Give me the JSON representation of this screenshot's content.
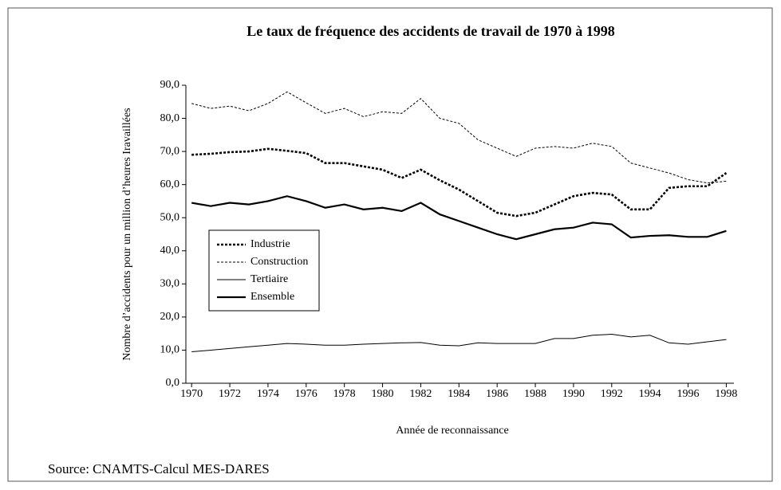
{
  "chart_data": {
    "type": "line",
    "title": "Le taux de fréquence des accidents de travail de 1970 à 1998",
    "xlabel": "Année de reconnaissance",
    "ylabel": "Nombre d’accidents pour un million d’heures Iravaillées",
    "source": "Source: CNAMTS-Calcul MES-DARES",
    "x": [
      1970,
      1971,
      1972,
      1973,
      1974,
      1975,
      1976,
      1977,
      1978,
      1979,
      1980,
      1981,
      1982,
      1983,
      1984,
      1985,
      1986,
      1987,
      1988,
      1989,
      1990,
      1991,
      1992,
      1993,
      1994,
      1995,
      1996,
      1997,
      1998
    ],
    "xlim": [
      1969.7,
      1998.4
    ],
    "xticks": [
      1970,
      1972,
      1974,
      1976,
      1978,
      1980,
      1982,
      1984,
      1986,
      1988,
      1990,
      1992,
      1994,
      1996,
      1998
    ],
    "ylim": [
      0,
      90
    ],
    "yticks": [
      {
        "value": 0,
        "label": "0,0"
      },
      {
        "value": 10,
        "label": "10,0"
      },
      {
        "value": 20,
        "label": "20,0"
      },
      {
        "value": 30,
        "label": "30,0"
      },
      {
        "value": 40,
        "label": "40,0"
      },
      {
        "value": 50,
        "label": "50,0"
      },
      {
        "value": 60,
        "label": "60,0"
      },
      {
        "value": 70,
        "label": "70,0"
      },
      {
        "value": 80,
        "label": "80,0"
      },
      {
        "value": 90,
        "label": "90,0"
      }
    ],
    "series": [
      {
        "name": "Industrie",
        "color": "#000",
        "width": 2.6,
        "dash": "3 2",
        "values": [
          69,
          69.3,
          69.8,
          70,
          70.8,
          70.2,
          69.5,
          66.5,
          66.5,
          65.5,
          64.5,
          62,
          64.5,
          61.3,
          58.5,
          55,
          51.5,
          50.5,
          51.5,
          54,
          56.5,
          57.5,
          57,
          52.5,
          52.5,
          59,
          59.5,
          59.5,
          63.5
        ]
      },
      {
        "name": "Construction",
        "color": "#000",
        "width": 1,
        "dash": "3 2",
        "values": [
          84.5,
          83,
          83.7,
          82.3,
          84.5,
          88,
          84.7,
          81.5,
          83,
          80.5,
          82,
          81.5,
          86,
          80,
          78.5,
          73.5,
          71,
          68.5,
          71,
          71.5,
          71,
          72.5,
          71.5,
          66.5,
          65,
          63.5,
          61.5,
          60.5,
          61
        ]
      },
      {
        "name": "Tertiaire",
        "color": "#000",
        "width": 1,
        "dash": "none",
        "values": [
          9.5,
          10,
          10.5,
          11,
          11.5,
          12,
          11.8,
          11.5,
          11.5,
          11.8,
          12,
          12.2,
          12.3,
          11.5,
          11.3,
          12.2,
          12,
          12,
          12,
          13.5,
          13.5,
          14.5,
          14.8,
          14,
          14.5,
          12.2,
          11.8,
          12.5,
          13.2
        ]
      },
      {
        "name": "Ensemble",
        "color": "#000",
        "width": 2.2,
        "dash": "none",
        "values": [
          54.5,
          53.5,
          54.5,
          54,
          55,
          56.5,
          55,
          53,
          54,
          52.5,
          53,
          52,
          54.5,
          51,
          49,
          47,
          45,
          43.5,
          45,
          46.5,
          47,
          48.5,
          48,
          44,
          44.5,
          44.7,
          44.2,
          44.2,
          46
        ]
      }
    ]
  }
}
